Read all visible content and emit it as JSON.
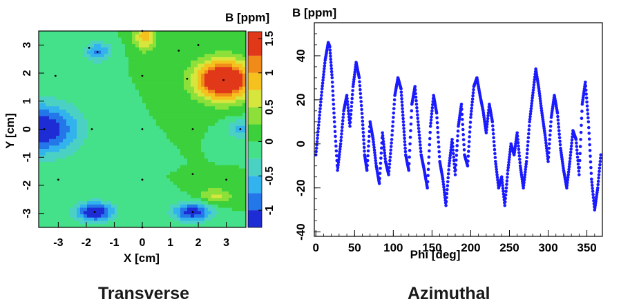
{
  "chart_data": [
    {
      "type": "heatmap",
      "xlabel": "X [cm]",
      "ylabel": "Y [cm]",
      "colorbar_label": "B [ppm]",
      "xlim": [
        -3.7,
        3.7
      ],
      "ylim": [
        -3.5,
        3.5
      ],
      "xticks": [
        -3,
        -2,
        -1,
        0,
        1,
        2,
        3
      ],
      "xtick_labels": [
        "-3",
        "-2",
        "-1",
        "0",
        "1",
        "2",
        "3"
      ],
      "yticks": [
        -3,
        -2,
        -1,
        0,
        1,
        2,
        3
      ],
      "ytick_labels": [
        "-3",
        "-2",
        "-1",
        "0",
        "1",
        "2",
        "3"
      ],
      "zlim": [
        -1.25,
        1.6
      ],
      "colorbar_ticks": [
        -1,
        -0.5,
        0,
        0.5,
        1,
        1.5
      ],
      "colorbar_tick_labels": [
        "-1",
        "-0.5",
        "0",
        "0.5",
        "1",
        "1.5"
      ],
      "level_colors": [
        "#1e2cd6",
        "#2377e8",
        "#33b3ee",
        "#4ad1c4",
        "#45e08a",
        "#3bd03c",
        "#8de03a",
        "#d6e63c",
        "#f5c11f",
        "#f08a18",
        "#e03818"
      ],
      "level_bounds": [
        -1.25,
        -1.0,
        -0.75,
        -0.5,
        -0.25,
        0,
        0.25,
        0.5,
        0.75,
        1.0,
        1.25,
        1.6
      ],
      "blobs": [
        {
          "x": 2.9,
          "y": 1.75,
          "amp": 2.0,
          "sx": 1.0,
          "sy": 0.7
        },
        {
          "x": 0.1,
          "y": 3.3,
          "amp": 0.9,
          "sx": 0.4,
          "sy": 0.5
        },
        {
          "x": 2.6,
          "y": -2.4,
          "amp": 0.6,
          "sx": 0.6,
          "sy": 0.3
        },
        {
          "x": -3.6,
          "y": 0.0,
          "amp": -1.3,
          "sx": 1.3,
          "sy": 0.9
        },
        {
          "x": -1.7,
          "y": -2.95,
          "amp": -1.3,
          "sx": 0.7,
          "sy": 0.35
        },
        {
          "x": 1.8,
          "y": -2.95,
          "amp": -1.2,
          "sx": 0.7,
          "sy": 0.35
        },
        {
          "x": -1.6,
          "y": 2.75,
          "amp": -0.8,
          "sx": 0.5,
          "sy": 0.35
        },
        {
          "x": 3.5,
          "y": 0.0,
          "amp": -0.6,
          "sx": 0.5,
          "sy": 0.35
        }
      ],
      "sample_points": [
        [
          0,
          3.5
        ],
        [
          -1.9,
          2.9
        ],
        [
          -1.6,
          2.75
        ],
        [
          1.3,
          2.8
        ],
        [
          2.0,
          3.0
        ],
        [
          -3.1,
          1.9
        ],
        [
          0,
          1.9
        ],
        [
          1.6,
          1.8
        ],
        [
          2.9,
          1.75
        ],
        [
          -3.5,
          0
        ],
        [
          -1.8,
          0
        ],
        [
          0,
          0
        ],
        [
          1.8,
          0
        ],
        [
          3.5,
          0
        ],
        [
          -3.0,
          -1.8
        ],
        [
          0,
          -1.8
        ],
        [
          1.8,
          -1.6
        ],
        [
          3.0,
          -1.8
        ],
        [
          -1.7,
          -2.95
        ],
        [
          0,
          -3.5
        ],
        [
          1.8,
          -2.95
        ]
      ]
    },
    {
      "type": "scatter",
      "ylabel": "B [ppm]",
      "xlabel": "Phi [deg]",
      "xlim": [
        -2,
        370
      ],
      "ylim": [
        -42,
        55
      ],
      "xticks": [
        0,
        50,
        100,
        150,
        200,
        250,
        300,
        350
      ],
      "xtick_labels": [
        "0",
        "50",
        "100",
        "150",
        "200",
        "250",
        "300",
        "350"
      ],
      "yticks": [
        -40,
        -20,
        0,
        20,
        40
      ],
      "ytick_labels": [
        "-40",
        "-20",
        "0",
        "20",
        "40"
      ],
      "marker_color": "#1a1aff",
      "x": [
        0,
        4,
        8,
        12,
        16,
        18,
        21,
        24,
        28,
        32,
        36,
        40,
        44,
        48,
        52,
        56,
        60,
        63,
        66,
        70,
        74,
        78,
        82,
        86,
        90,
        94,
        98,
        102,
        106,
        110,
        113,
        116,
        120,
        124,
        128,
        132,
        136,
        140,
        144,
        148,
        152,
        156,
        160,
        164,
        168,
        172,
        176,
        180,
        184,
        188,
        192,
        196,
        200,
        204,
        208,
        212,
        216,
        220,
        224,
        228,
        232,
        236,
        240,
        244,
        248,
        252,
        256,
        260,
        264,
        268,
        272,
        276,
        280,
        284,
        288,
        292,
        296,
        300,
        304,
        308,
        312,
        316,
        320,
        324,
        328,
        332,
        336,
        340,
        344,
        348,
        352,
        356,
        360,
        364,
        368
      ],
      "y": [
        -5,
        10,
        25,
        38,
        46,
        44,
        30,
        10,
        -12,
        0,
        15,
        22,
        8,
        26,
        37,
        30,
        12,
        -5,
        -12,
        10,
        2,
        -10,
        -18,
        5,
        -8,
        -14,
        2,
        22,
        30,
        25,
        10,
        -5,
        -12,
        18,
        26,
        10,
        -5,
        -12,
        -20,
        8,
        22,
        14,
        -8,
        -16,
        -28,
        -10,
        2,
        -14,
        8,
        18,
        -5,
        -10,
        12,
        26,
        30,
        22,
        15,
        5,
        18,
        10,
        -8,
        -20,
        -15,
        -28,
        -12,
        0,
        -5,
        5,
        -10,
        -20,
        -8,
        10,
        22,
        34,
        25,
        14,
        4,
        -8,
        12,
        22,
        14,
        -2,
        -12,
        -20,
        -8,
        6,
        2,
        -14,
        18,
        28,
        10,
        -16,
        -30,
        -20,
        -5
      ]
    }
  ],
  "captions": {
    "left": "Transverse",
    "right": "Azimuthal"
  }
}
